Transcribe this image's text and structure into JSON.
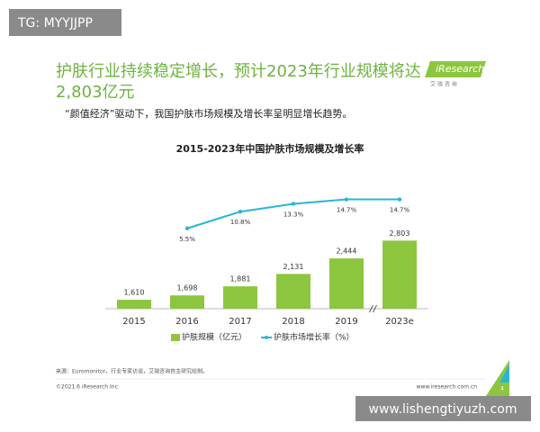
{
  "watermark_top": "TG: MYYJJPP",
  "header": {
    "title": "护肤行业持续稳定增长，预计2023年行业规模将达2,803亿元",
    "subtitle": "“颜值经济”驱动下，我国护肤市场规模及增长率呈明显增长趋势。"
  },
  "logo": {
    "brand": "iResearch",
    "tagline": "艾 瑞 咨 询"
  },
  "chart_data": {
    "type": "combo",
    "title": "2015-2023年中国护肤市场规模及增长率",
    "categories": [
      "2015",
      "2016",
      "2017",
      "2018",
      "2019",
      "2023e"
    ],
    "series": [
      {
        "name": "护肤规模（亿元）",
        "type": "bar",
        "color": "#8cc63f",
        "values": [
          1610,
          1698,
          1881,
          2131,
          2444,
          2803
        ],
        "value_labels": [
          "1,610",
          "1,698",
          "1,881",
          "2,131",
          "2,444",
          "2,803"
        ]
      },
      {
        "name": "护肤市场增长率（%）",
        "type": "line",
        "axis": "y2",
        "color": "#29b5d6",
        "values": [
          null,
          5.5,
          10.8,
          13.3,
          14.7,
          14.7
        ],
        "value_labels": [
          null,
          "5.5%",
          "10.8%",
          "13.3%",
          "14.7%",
          "14.7%"
        ]
      }
    ],
    "ylim": [
      1430,
      2900
    ],
    "y2lim": [
      0,
      20
    ],
    "axis_break": true
  },
  "footer": {
    "source": "来源：Euromonitor，行业专家访谈，艾瑞咨询自主研究绘制。",
    "copyright": "©2021.6 iResearch Inc",
    "website": "www.iresearch.com.cn",
    "page": "4"
  },
  "watermark_bottom": "www.lishengtiyuzh.com"
}
